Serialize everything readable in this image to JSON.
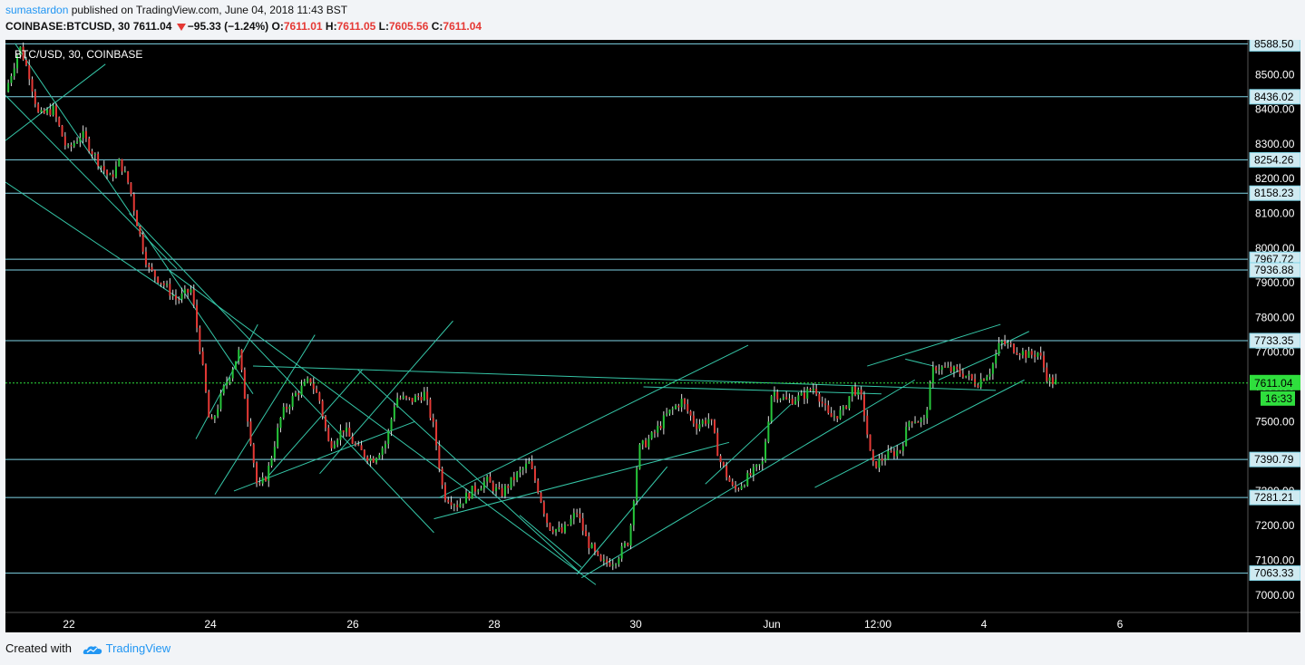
{
  "header": {
    "author": "sumastardon",
    "published_text": " published on TradingView.com, June 04, 2018 11:43 BST",
    "symbol": "COINBASE:BTCUSD, 30",
    "last": "7611.04",
    "change": "−95.33 (−1.24%)",
    "o_label": "O:",
    "o": "7611.01",
    "h_label": "H:",
    "h": "7611.05",
    "l_label": "L:",
    "l": "7605.56",
    "c_label": "C:",
    "c": "7611.04"
  },
  "chart_data": {
    "type": "candlestick",
    "title": "BTC/USD, 30, COINBASE",
    "ylim": [
      6950,
      8650
    ],
    "y_ticks": [
      7000,
      7100,
      7200,
      7300,
      7400,
      7500,
      7600,
      7700,
      7800,
      7900,
      8000,
      8100,
      8200,
      8300,
      8400,
      8500
    ],
    "y_tick_labels": [
      "7000.00",
      "7100.00",
      "7200.00",
      "7300.00",
      "7400.00",
      "7500.00",
      "7600.00",
      "7700.00",
      "7800.00",
      "7900.00",
      "8000.00",
      "8100.00",
      "8200.00",
      "8300.00",
      "8400.00",
      "8500.00"
    ],
    "x_ticks": [
      "22",
      "24",
      "26",
      "28",
      "30",
      "Jun",
      "12:00",
      "4",
      "6"
    ],
    "horizontal_levels": [
      8588.5,
      8436.02,
      8254.26,
      8158.23,
      7967.72,
      7936.88,
      7733.35,
      7390.79,
      7281.21,
      7063.33
    ],
    "level_labels": [
      "8588.50",
      "8436.02",
      "8254.26",
      "8158.23",
      "7967.72",
      "7936.88",
      "7733.35",
      "7390.79",
      "7281.21",
      "7063.33"
    ],
    "last_price": 7611.04,
    "last_price_label": "7611.04",
    "countdown_label": "16:33",
    "price_path": [
      [
        0,
        8450
      ],
      [
        1.5,
        8580
      ],
      [
        2.5,
        8500
      ],
      [
        3.5,
        8380
      ],
      [
        5,
        8400
      ],
      [
        6.5,
        8280
      ],
      [
        8,
        8330
      ],
      [
        9.5,
        8260
      ],
      [
        11,
        8200
      ],
      [
        12,
        8250
      ],
      [
        13,
        8180
      ],
      [
        14,
        8050
      ],
      [
        15,
        7940
      ],
      [
        16.5,
        7900
      ],
      [
        18,
        7850
      ],
      [
        19.5,
        7880
      ],
      [
        20.5,
        7700
      ],
      [
        21.5,
        7480
      ],
      [
        23,
        7600
      ],
      [
        24.5,
        7700
      ],
      [
        25.5,
        7500
      ],
      [
        26.5,
        7300
      ],
      [
        27.5,
        7350
      ],
      [
        29,
        7520
      ],
      [
        30.5,
        7580
      ],
      [
        32,
        7620
      ],
      [
        33,
        7560
      ],
      [
        34,
        7430
      ],
      [
        35.5,
        7480
      ],
      [
        37,
        7420
      ],
      [
        38.5,
        7390
      ],
      [
        40,
        7440
      ],
      [
        41,
        7570
      ],
      [
        42.5,
        7560
      ],
      [
        44,
        7580
      ],
      [
        45,
        7480
      ],
      [
        46,
        7290
      ],
      [
        47.5,
        7260
      ],
      [
        49,
        7300
      ],
      [
        50.5,
        7330
      ],
      [
        52,
        7290
      ],
      [
        53.5,
        7340
      ],
      [
        55,
        7380
      ],
      [
        56,
        7300
      ],
      [
        57,
        7200
      ],
      [
        58.5,
        7180
      ],
      [
        60,
        7240
      ],
      [
        61,
        7160
      ],
      [
        62.5,
        7090
      ],
      [
        64,
        7100
      ],
      [
        65.5,
        7160
      ],
      [
        66.5,
        7420
      ],
      [
        68,
        7460
      ],
      [
        69.5,
        7520
      ],
      [
        71,
        7560
      ],
      [
        72.5,
        7490
      ],
      [
        74,
        7510
      ],
      [
        75,
        7390
      ],
      [
        76.5,
        7300
      ],
      [
        78,
        7340
      ],
      [
        79.5,
        7380
      ],
      [
        80.5,
        7590
      ],
      [
        82,
        7560
      ],
      [
        83.5,
        7570
      ],
      [
        85,
        7600
      ],
      [
        86.5,
        7510
      ],
      [
        88,
        7530
      ],
      [
        89,
        7600
      ],
      [
        90,
        7560
      ],
      [
        91,
        7370
      ],
      [
        92.5,
        7400
      ],
      [
        94,
        7420
      ],
      [
        95,
        7510
      ],
      [
        96.5,
        7500
      ],
      [
        97.5,
        7660
      ],
      [
        99,
        7650
      ],
      [
        100.5,
        7640
      ],
      [
        102,
        7610
      ],
      [
        103.5,
        7650
      ],
      [
        104.5,
        7730
      ],
      [
        106,
        7710
      ],
      [
        107.5,
        7690
      ],
      [
        108.5,
        7700
      ],
      [
        109.5,
        7620
      ],
      [
        110.5,
        7611
      ]
    ],
    "x_units": "hours since May 21 12:00 / 6",
    "trend_lines": [
      [
        [
          0,
          8310
        ],
        [
          10.5,
          8530
        ]
      ],
      [
        [
          0,
          8440
        ],
        [
          18,
          7940
        ]
      ],
      [
        [
          0,
          8190
        ],
        [
          18.5,
          7850
        ]
      ],
      [
        [
          1,
          8590
        ],
        [
          26,
          7580
        ]
      ],
      [
        [
          13,
          8100
        ],
        [
          45,
          7180
        ]
      ],
      [
        [
          17,
          7940
        ],
        [
          62,
          7030
        ]
      ],
      [
        [
          20,
          7450
        ],
        [
          26.5,
          7780
        ]
      ],
      [
        [
          22,
          7290
        ],
        [
          32.5,
          7750
        ]
      ],
      [
        [
          24,
          7300
        ],
        [
          43,
          7500
        ]
      ],
      [
        [
          27.5,
          7340
        ],
        [
          37.5,
          7650
        ]
      ],
      [
        [
          33,
          7350
        ],
        [
          47,
          7790
        ]
      ],
      [
        [
          37,
          7650
        ],
        [
          60.5,
          7060
        ]
      ],
      [
        [
          45.5,
          7280
        ],
        [
          78,
          7720
        ]
      ],
      [
        [
          45,
          7220
        ],
        [
          76,
          7440
        ]
      ],
      [
        [
          54,
          7230
        ],
        [
          60.5,
          7080
        ]
      ],
      [
        [
          60,
          7060
        ],
        [
          69.5,
          7370
        ]
      ],
      [
        [
          60.5,
          7050
        ],
        [
          95.5,
          7620
        ]
      ],
      [
        [
          73.5,
          7320
        ],
        [
          82.5,
          7550
        ]
      ],
      [
        [
          85,
          7310
        ],
        [
          107,
          7620
        ]
      ],
      [
        [
          90.5,
          7660
        ],
        [
          104.5,
          7780
        ]
      ],
      [
        [
          26,
          7660
        ],
        [
          104,
          7590
        ]
      ],
      [
        [
          94.5,
          7680
        ],
        [
          97.5,
          7660
        ]
      ],
      [
        [
          98,
          7620
        ],
        [
          104.5,
          7700
        ]
      ],
      [
        [
          104.5,
          7720
        ],
        [
          107.5,
          7760
        ]
      ],
      [
        [
          67,
          7600
        ],
        [
          92,
          7580
        ]
      ]
    ]
  },
  "footer": {
    "created_with": "Created with",
    "brand": "TradingView"
  },
  "colors": {
    "background": "#000000",
    "axis_panel": "#000000",
    "level_line": "#7fd4e6",
    "trend_line": "#35c6a7",
    "up": "#26c63a",
    "down": "#e53935",
    "last_price": "#2fdf3d"
  }
}
